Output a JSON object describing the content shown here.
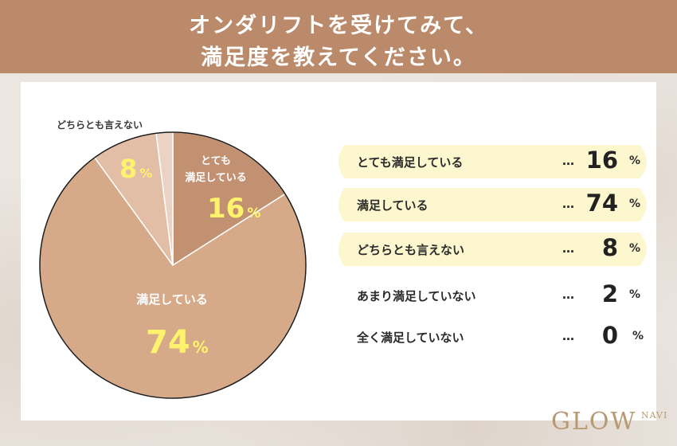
{
  "header": {
    "title_line1": "オンダリフトを受けてみて、",
    "title_line2": "満足度を教えてください。"
  },
  "pie_labels": {
    "totemo_line1": "とても",
    "totemo_line2": "満足している",
    "dochira": "どちらとも言えない",
    "manzoku": "満足している"
  },
  "colors": {
    "header": "#ba8a6a",
    "slice_totemo": "#c19172",
    "slice_manzoku": "#d6a988",
    "slice_dochira": "#e2bea6",
    "slice_amari": "#ead3c2",
    "value_yellow": "#fff36e",
    "row_highlight": "#fdf7cf"
  },
  "chart_data": {
    "type": "pie",
    "slices": [
      {
        "label": "とても満足している",
        "value": 16
      },
      {
        "label": "満足している",
        "value": 74
      },
      {
        "label": "どちらとも言えない",
        "value": 8
      },
      {
        "label": "あまり満足していない",
        "value": 2
      },
      {
        "label": "全く満足していない",
        "value": 0
      }
    ],
    "unit": "%"
  },
  "legend": {
    "dots": "…",
    "unit": "%",
    "rows": [
      {
        "label": "とても満足している",
        "value": "16",
        "highlight": true
      },
      {
        "label": "満足している",
        "value": "74",
        "highlight": true
      },
      {
        "label": "どちらとも言えない",
        "value": "8",
        "highlight": true
      },
      {
        "label": "あまり満足していない",
        "value": "2",
        "highlight": false
      },
      {
        "label": "全く満足していない",
        "value": "0",
        "highlight": false
      }
    ]
  },
  "logo": {
    "main": "GLOW",
    "navi": "NAVI"
  }
}
